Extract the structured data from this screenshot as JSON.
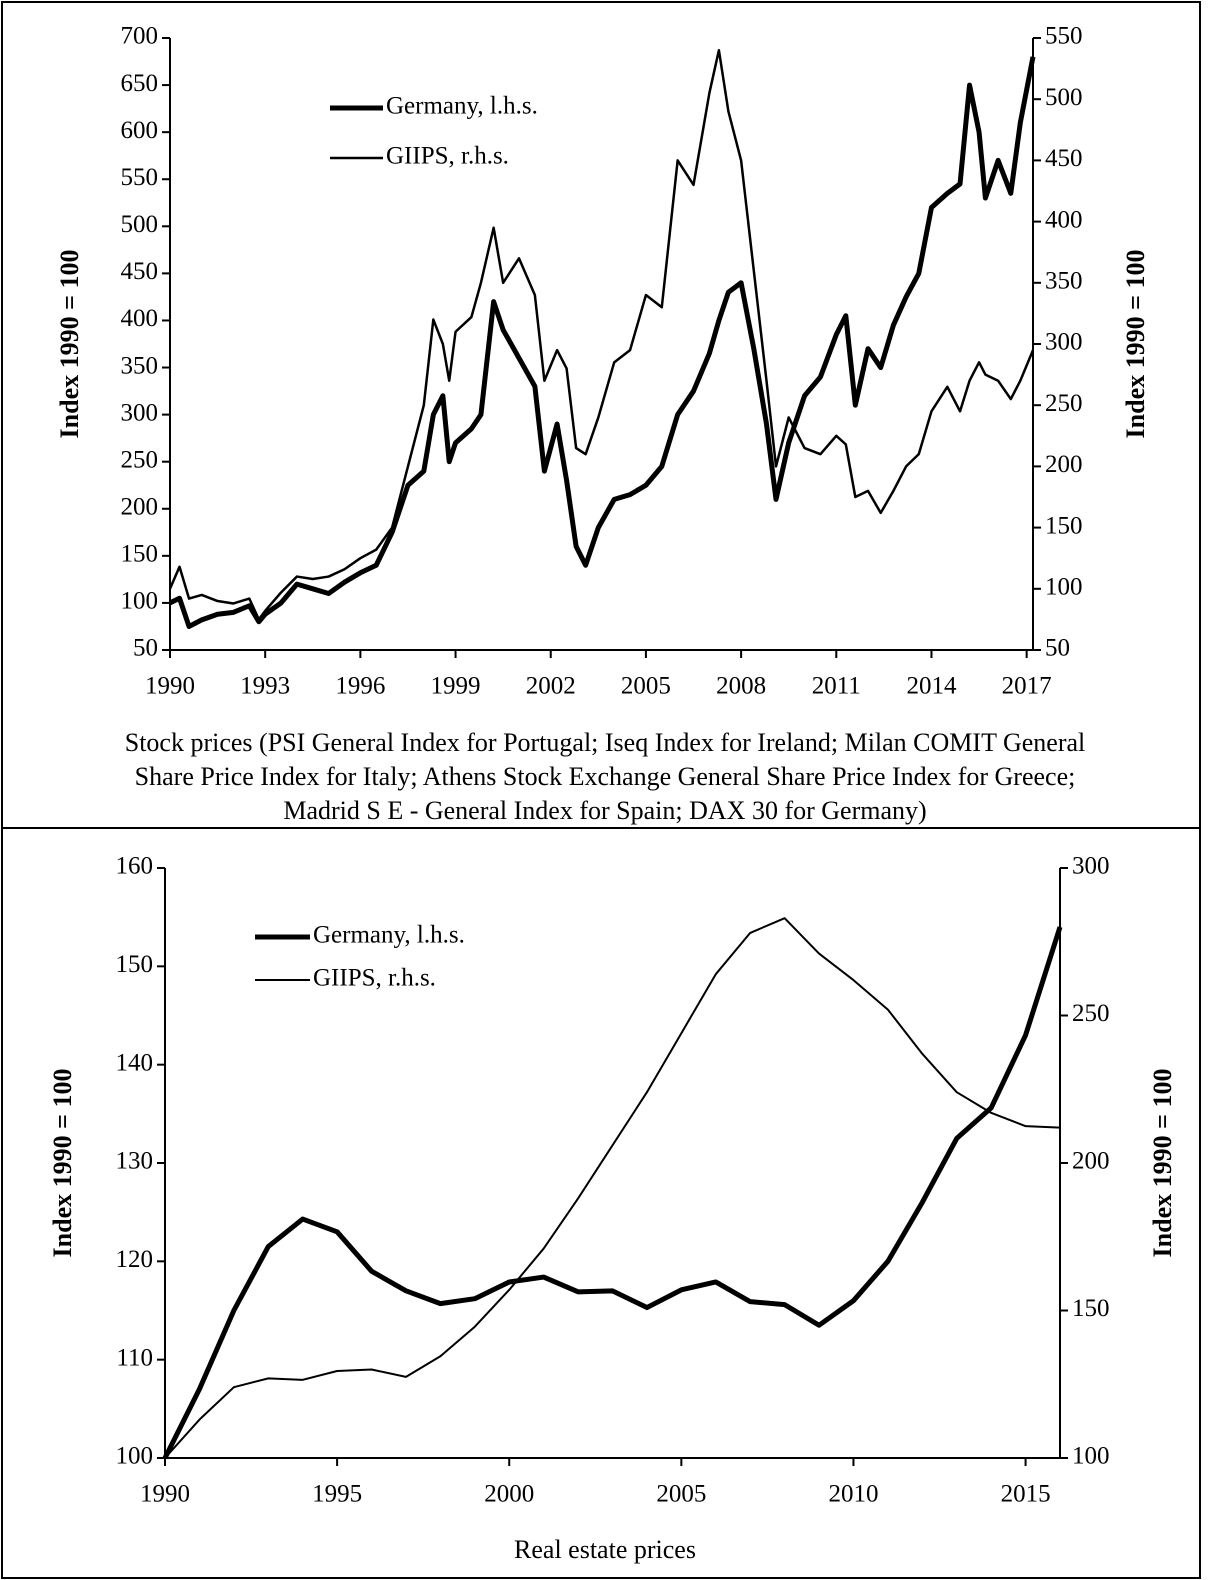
{
  "chart_data": [
    {
      "type": "line",
      "caption": [
        "Stock prices (PSI General Index for Portugal; Iseq Index for Ireland; Milan COMIT General",
        "Share Price Index for Italy; Athens Stock Exchange General Share Price Index for Greece;",
        "Madrid S E - General Index for Spain; DAX 30 for Germany)"
      ],
      "ylabel": "Index 1990 = 100",
      "y2label": "Index 1990 = 100",
      "x": [
        1990,
        1990.3,
        1990.6,
        1991,
        1991.5,
        1992,
        1992.5,
        1992.8,
        1993,
        1993.5,
        1994,
        1994.5,
        1995,
        1995.5,
        1996,
        1996.5,
        1997,
        1997.5,
        1998,
        1998.3,
        1998.6,
        1998.8,
        1999,
        1999.5,
        1999.8,
        2000.2,
        2000.5,
        2001,
        2001.5,
        2001.8,
        2002.2,
        2002.5,
        2002.8,
        2003.1,
        2003.5,
        2004,
        2004.5,
        2005,
        2005.5,
        2006,
        2006.5,
        2007,
        2007.3,
        2007.6,
        2008,
        2008.4,
        2008.8,
        2009.1,
        2009.5,
        2010,
        2010.5,
        2011,
        2011.3,
        2011.6,
        2012,
        2012.4,
        2012.8,
        2013.2,
        2013.6,
        2014,
        2014.5,
        2014.9,
        2015.2,
        2015.5,
        2015.7,
        2016.1,
        2016.5,
        2016.8,
        2017.2
      ],
      "series": [
        {
          "name": "Germany, l.h.s.",
          "color": "#000000",
          "values": [
            100,
            105,
            75,
            82,
            88,
            90,
            97,
            80,
            88,
            100,
            120,
            115,
            110,
            122,
            132,
            140,
            175,
            225,
            240,
            300,
            320,
            250,
            270,
            285,
            300,
            420,
            390,
            360,
            330,
            240,
            290,
            230,
            160,
            140,
            180,
            210,
            215,
            225,
            245,
            300,
            325,
            365,
            400,
            430,
            440,
            370,
            290,
            210,
            270,
            320,
            340,
            385,
            405,
            310,
            370,
            350,
            395,
            425,
            450,
            520,
            535,
            545,
            650,
            600,
            530,
            570,
            535,
            610,
            680
          ]
        },
        {
          "name": "GIIPS, r.h.s.",
          "color": "#000000",
          "axis": "y2",
          "values": [
            100,
            118,
            92,
            95,
            90,
            88,
            92,
            75,
            82,
            97,
            110,
            108,
            110,
            116,
            125,
            132,
            150,
            200,
            250,
            320,
            300,
            270,
            310,
            322,
            350,
            395,
            350,
            370,
            340,
            270,
            295,
            280,
            215,
            210,
            240,
            285,
            295,
            340,
            330,
            450,
            430,
            505,
            540,
            490,
            450,
            360,
            270,
            200,
            240,
            215,
            210,
            225,
            218,
            175,
            180,
            162,
            180,
            200,
            210,
            245,
            265,
            245,
            270,
            285,
            275,
            270,
            255,
            270,
            295
          ]
        }
      ],
      "xlim": [
        1990,
        2017.2
      ],
      "xticks": [
        1990,
        1993,
        1996,
        1999,
        2002,
        2005,
        2008,
        2011,
        2014,
        2017
      ],
      "ylim": [
        50,
        700
      ],
      "yticks": [
        50,
        100,
        150,
        200,
        250,
        300,
        350,
        400,
        450,
        500,
        550,
        600,
        650,
        700
      ],
      "y2lim": [
        50,
        550
      ],
      "y2ticks": [
        50,
        100,
        150,
        200,
        250,
        300,
        350,
        400,
        450,
        500,
        550
      ]
    },
    {
      "type": "line",
      "caption": [
        "Real estate prices"
      ],
      "ylabel": "Index 1990 = 100",
      "y2label": "Index 1990 = 100",
      "x": [
        1990,
        1991,
        1992,
        1993,
        1994,
        1995,
        1996,
        1997,
        1998,
        1999,
        2000,
        2001,
        2002,
        2003,
        2004,
        2005,
        2006,
        2007,
        2008,
        2009,
        2010,
        2011,
        2012,
        2013,
        2014,
        2015,
        2016
      ],
      "series": [
        {
          "name": "Germany, l.h.s.",
          "color": "#000000",
          "values": [
            100,
            107,
            115,
            121.5,
            124.3,
            123,
            119,
            117,
            115.7,
            116.2,
            117.9,
            118.4,
            116.9,
            117,
            115.3,
            117.1,
            117.9,
            115.9,
            115.6,
            113.5,
            116,
            120,
            126,
            132.5,
            135.6,
            143,
            154
          ]
        },
        {
          "name": "GIIPS, r.h.s.",
          "color": "#000000",
          "axis": "y2",
          "values": [
            100,
            113,
            124,
            127,
            126.5,
            129.5,
            130,
            127.5,
            134.5,
            144.5,
            157,
            171,
            188,
            206,
            224,
            244,
            264,
            278,
            283,
            271,
            262,
            252,
            237,
            224,
            217,
            212.5,
            212
          ]
        }
      ],
      "xlim": [
        1990,
        2016
      ],
      "xticks": [
        1990,
        1995,
        2000,
        2005,
        2010,
        2015
      ],
      "ylim": [
        100,
        160
      ],
      "yticks": [
        100,
        110,
        120,
        130,
        140,
        150,
        160
      ],
      "y2lim": [
        100,
        300
      ],
      "y2ticks": [
        100,
        150,
        200,
        250,
        300
      ]
    }
  ]
}
